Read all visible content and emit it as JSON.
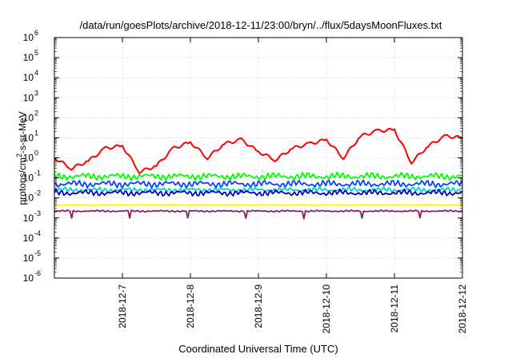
{
  "chart_data": {
    "type": "line",
    "title": "/data/run/goesPlots/archive/2018-12-11/23:00/bryn/../flux/5daysMoonFluxes.txt",
    "xlabel": "Coordinated Universal Time (UTC)",
    "ylabel": {
      "base": "protons/cm",
      "sup": "2",
      "rest": "-s-sr-MeV"
    },
    "x_ticks": [
      "2018-12-7",
      "2018-12-8",
      "2018-12-9",
      "2018-12-10",
      "2018-12-11",
      "2018-12-12"
    ],
    "y_ticks": [
      {
        "base": "10",
        "exp": "6"
      },
      {
        "base": "10",
        "exp": "5"
      },
      {
        "base": "10",
        "exp": "4"
      },
      {
        "base": "10",
        "exp": "3"
      },
      {
        "base": "10",
        "exp": "2"
      },
      {
        "base": "10",
        "exp": "1"
      },
      {
        "base": "10",
        "exp": "0"
      },
      {
        "base": "10",
        "exp": "-1"
      },
      {
        "base": "10",
        "exp": "-2"
      },
      {
        "base": "10",
        "exp": "-3"
      },
      {
        "base": "10",
        "exp": "-4"
      },
      {
        "base": "10",
        "exp": "-5"
      },
      {
        "base": "10",
        "exp": "-6"
      }
    ],
    "x_range": [
      "2018-12-06",
      "2018-12-12"
    ],
    "y_range": [
      1e-06,
      1000000.0
    ],
    "y_scale": "log",
    "grid": true,
    "series": [
      {
        "color": "#ff0000",
        "x": [
          "2018-12-06",
          "2018-12-06 06:00",
          "2018-12-06 12:00",
          "2018-12-06 18:00",
          "2018-12-07 00:00",
          "2018-12-07 06:00",
          "2018-12-07 12:00",
          "2018-12-07 18:00",
          "2018-12-08 00:00",
          "2018-12-08 06:00",
          "2018-12-08 12:00",
          "2018-12-08 18:00",
          "2018-12-09 00:00",
          "2018-12-09 06:00",
          "2018-12-09 12:00",
          "2018-12-09 18:00",
          "2018-12-10 00:00",
          "2018-12-10 06:00",
          "2018-12-10 12:00",
          "2018-12-10 18:00",
          "2018-12-11 00:00",
          "2018-12-11 06:00",
          "2018-12-11 12:00",
          "2018-12-11 18:00",
          "2018-12-12 00:00"
        ],
        "values": [
          1.0,
          0.3,
          0.7,
          3.0,
          4.0,
          0.2,
          0.4,
          3.0,
          6.0,
          1.0,
          5.0,
          8.0,
          2.0,
          0.8,
          3.0,
          5.0,
          8.0,
          1.0,
          12.0,
          22.0,
          25.0,
          0.6,
          4.0,
          12.0,
          10.0
        ]
      },
      {
        "color": "#00ff00",
        "level": 0.12,
        "spread": 0.35
      },
      {
        "color": "#0044ff",
        "level": 0.05,
        "spread": 0.35
      },
      {
        "color": "#00d0d0",
        "level": 0.025,
        "spread": 0.25
      },
      {
        "color": "#0000c0",
        "level": 0.018,
        "spread": 0.3
      },
      {
        "color": "#ffff00",
        "level": 0.0045,
        "spread": 0.05
      },
      {
        "color": "#8b1f5e",
        "level": 0.0022,
        "spread": 0.08
      }
    ]
  }
}
